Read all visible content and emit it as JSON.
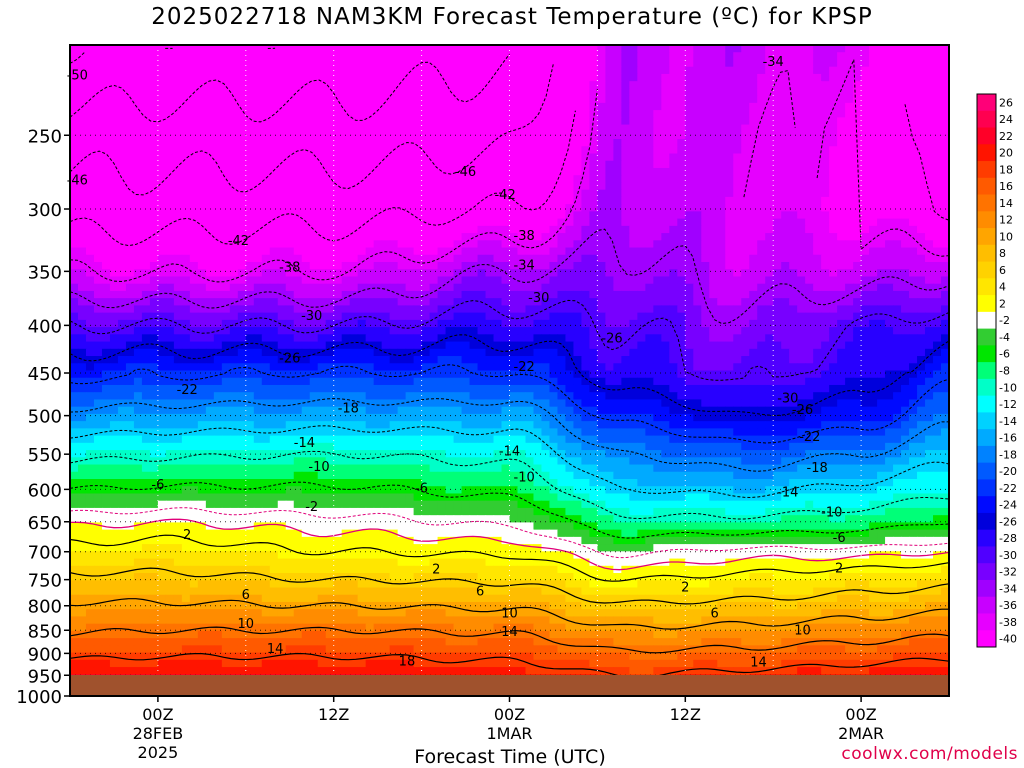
{
  "chart_data": {
    "type": "heatmap",
    "title": "2025022718 NAM3KM Forecast Temperature (ºC) for KPSP",
    "xlabel": "Forecast Time (UTC)",
    "ylabel": "",
    "y_scale": "pressure (log), inverted",
    "y_ticks": [
      250,
      300,
      350,
      400,
      450,
      500,
      550,
      600,
      650,
      700,
      750,
      800,
      850,
      900,
      950,
      1000
    ],
    "y_range": [
      1000,
      200
    ],
    "x_range_hours": [
      -6,
      54
    ],
    "x_ticks": [
      {
        "hour": 0,
        "lines": [
          "00Z",
          "28FEB",
          "2025"
        ]
      },
      {
        "hour": 12,
        "lines": [
          "12Z"
        ]
      },
      {
        "hour": 24,
        "lines": [
          "00Z",
          "1MAR"
        ]
      },
      {
        "hour": 36,
        "lines": [
          "12Z"
        ]
      },
      {
        "hour": 48,
        "lines": [
          "00Z",
          "2MAR"
        ]
      }
    ],
    "grid": true,
    "colorbar": {
      "position": "right",
      "labels": [
        26,
        24,
        22,
        20,
        18,
        16,
        14,
        12,
        10,
        8,
        6,
        4,
        2,
        -2,
        -4,
        -6,
        -8,
        -10,
        -12,
        -14,
        -16,
        -18,
        -20,
        -22,
        -24,
        -26,
        -28,
        -30,
        -32,
        -34,
        -36,
        -38,
        -40
      ],
      "colors": [
        "#ff0078",
        "#ff0050",
        "#ff0028",
        "#ff1400",
        "#ff3c00",
        "#ff5a00",
        "#ff7300",
        "#ff8c00",
        "#ffa500",
        "#ffbe00",
        "#ffd200",
        "#ffe600",
        "#ffff00",
        "#ffffff",
        "#32cd32",
        "#00e600",
        "#00ff78",
        "#00ffc8",
        "#00ffff",
        "#00d2ff",
        "#00aaff",
        "#0082ff",
        "#005aff",
        "#0032ff",
        "#000aff",
        "#0000dc",
        "#2800ff",
        "#5000ff",
        "#7800ff",
        "#a000ff",
        "#c800ff",
        "#e600ff",
        "#ff00ff"
      ]
    },
    "isotherm_labels": [
      {
        "value": -50,
        "hour": -5.5,
        "p": 215
      },
      {
        "value": -46,
        "hour": -5.5,
        "p": 279
      },
      {
        "value": -46,
        "hour": 21,
        "p": 273
      },
      {
        "value": -42,
        "hour": 5.5,
        "p": 324
      },
      {
        "value": -42,
        "hour": 23.7,
        "p": 289
      },
      {
        "value": -38,
        "hour": 9,
        "p": 346
      },
      {
        "value": -38,
        "hour": 25,
        "p": 320
      },
      {
        "value": -34,
        "hour": 25,
        "p": 344
      },
      {
        "value": -34,
        "hour": 42,
        "p": 208
      },
      {
        "value": -30,
        "hour": 10.5,
        "p": 390
      },
      {
        "value": -30,
        "hour": 26,
        "p": 373
      },
      {
        "value": -30,
        "hour": 43,
        "p": 478
      },
      {
        "value": -26,
        "hour": 9,
        "p": 433
      },
      {
        "value": -26,
        "hour": 31,
        "p": 412
      },
      {
        "value": -26,
        "hour": 44,
        "p": 492
      },
      {
        "value": -22,
        "hour": 2,
        "p": 468
      },
      {
        "value": -22,
        "hour": 25,
        "p": 442
      },
      {
        "value": -22,
        "hour": 44.5,
        "p": 526
      },
      {
        "value": -18,
        "hour": 13,
        "p": 490
      },
      {
        "value": -18,
        "hour": 45,
        "p": 568
      },
      {
        "value": -14,
        "hour": 10,
        "p": 534
      },
      {
        "value": -14,
        "hour": 24,
        "p": 545
      },
      {
        "value": -14,
        "hour": 43,
        "p": 603
      },
      {
        "value": -10,
        "hour": 11,
        "p": 566
      },
      {
        "value": -10,
        "hour": 25,
        "p": 581
      },
      {
        "value": -10,
        "hour": 46,
        "p": 634
      },
      {
        "value": -6,
        "hour": 0,
        "p": 592
      },
      {
        "value": -6,
        "hour": 18,
        "p": 597
      },
      {
        "value": -6,
        "hour": 46.5,
        "p": 675
      },
      {
        "value": -2,
        "hour": 10.5,
        "p": 625
      },
      {
        "value": 2,
        "hour": 2,
        "p": 670
      },
      {
        "value": 2,
        "hour": 19,
        "p": 730
      },
      {
        "value": 2,
        "hour": 36,
        "p": 763
      },
      {
        "value": 2,
        "hour": 46.5,
        "p": 728
      },
      {
        "value": 6,
        "hour": 6,
        "p": 777
      },
      {
        "value": 6,
        "hour": 22,
        "p": 770
      },
      {
        "value": 6,
        "hour": 38,
        "p": 813
      },
      {
        "value": 10,
        "hour": 6,
        "p": 835
      },
      {
        "value": 10,
        "hour": 24,
        "p": 813
      },
      {
        "value": 10,
        "hour": 44,
        "p": 848
      },
      {
        "value": 14,
        "hour": 8,
        "p": 888
      },
      {
        "value": 14,
        "hour": 24,
        "p": 852
      },
      {
        "value": 14,
        "hour": 41,
        "p": 918
      },
      {
        "value": 18,
        "hour": 17,
        "p": 916
      }
    ]
  },
  "credit": "coolwx.com/models"
}
